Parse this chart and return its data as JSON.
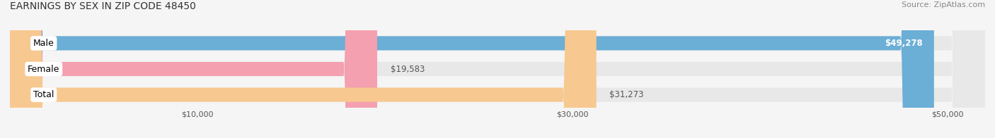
{
  "title": "EARNINGS BY SEX IN ZIP CODE 48450",
  "source": "Source: ZipAtlas.com",
  "categories": [
    "Male",
    "Female",
    "Total"
  ],
  "values": [
    49278,
    19583,
    31273
  ],
  "bar_colors": [
    "#6baed6",
    "#f4a0b0",
    "#f7c990"
  ],
  "bar_bg_color": "#e8e8e8",
  "xlim": [
    0,
    52000
  ],
  "xticks": [
    10000,
    30000,
    50000
  ],
  "xtick_labels": [
    "$10,000",
    "$30,000",
    "$50,000"
  ],
  "value_labels": [
    "$49,278",
    "$19,583",
    "$31,273"
  ],
  "bar_height": 0.55,
  "figsize": [
    14.06,
    1.96
  ],
  "dpi": 100,
  "bg_color": "#f5f5f5",
  "title_fontsize": 10,
  "source_fontsize": 8,
  "label_fontsize": 9,
  "value_fontsize": 8.5
}
